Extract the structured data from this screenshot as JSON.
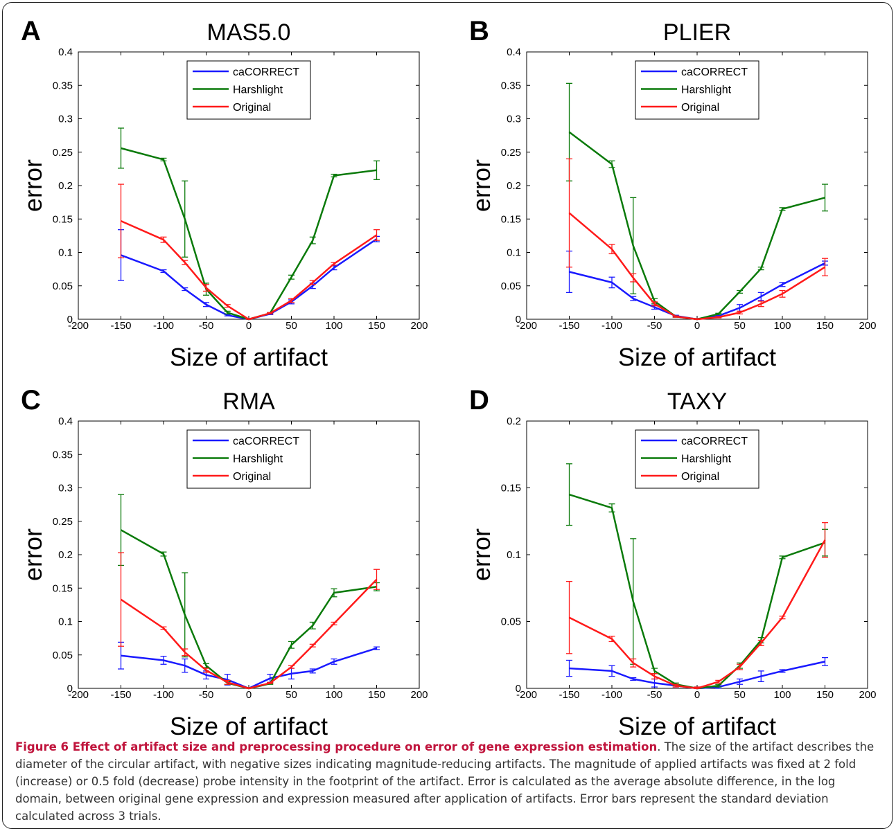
{
  "caption": {
    "lead": "Figure 6 Effect of artifact size and preprocessing procedure on error of gene expression estimation",
    "body": ". The size of the artifact describes the diameter of the circular artifact, with negative sizes indicating magnitude-reducing artifacts. The magnitude of applied artifacts was fixed at 2 fold (increase) or 0.5 fold (decrease) probe intensity in the footprint of the artifact. Error is calculated as the average absolute difference, in the log domain, between original gene expression and expression measured after application of artifacts. Error bars represent the standard deviation calculated across 3 trials."
  },
  "colors": {
    "caCORRECT": "#1a1aff",
    "Harshlight": "#0a7a0a",
    "Original": "#ff1a1a"
  },
  "chart_data": [
    {
      "panel_letter": "A",
      "type": "line",
      "title": "MAS5.0",
      "xlabel": "Size of artifact",
      "ylabel": "error",
      "xlim": [
        -200,
        200
      ],
      "ylim": [
        0,
        0.4
      ],
      "xticks": [
        "-200",
        "-150",
        "-100",
        "-50",
        "0",
        "50",
        "100",
        "150",
        "200"
      ],
      "yticks": [
        "0",
        "0.05",
        "0.1",
        "0.15",
        "0.2",
        "0.25",
        "0.3",
        "0.35",
        "0.4"
      ],
      "legend_position": "top-center",
      "x": [
        -150,
        -100,
        -75,
        -50,
        -25,
        0,
        25,
        50,
        75,
        100,
        150
      ],
      "series": [
        {
          "name": "caCORRECT",
          "values": [
            0.096,
            0.072,
            0.045,
            0.022,
            0.006,
            0,
            0.008,
            0.026,
            0.05,
            0.077,
            0.12
          ],
          "err": [
            0.038,
            0.002,
            0.002,
            0.003,
            0.001,
            0.001,
            0.001,
            0.003,
            0.004,
            0.003,
            0.004
          ]
        },
        {
          "name": "Harshlight",
          "values": [
            0.256,
            0.239,
            0.15,
            0.045,
            0.01,
            0,
            0.009,
            0.063,
            0.118,
            0.215,
            0.223
          ],
          "err": [
            0.03,
            0.002,
            0.057,
            0.009,
            0.002,
            0.001,
            0.001,
            0.003,
            0.005,
            0.002,
            0.014
          ]
        },
        {
          "name": "Original",
          "values": [
            0.147,
            0.119,
            0.085,
            0.047,
            0.02,
            0,
            0.009,
            0.028,
            0.055,
            0.083,
            0.126
          ],
          "err": [
            0.055,
            0.004,
            0.003,
            0.005,
            0.002,
            0.001,
            0.001,
            0.003,
            0.003,
            0.002,
            0.008
          ]
        }
      ]
    },
    {
      "panel_letter": "B",
      "type": "line",
      "title": "PLIER",
      "xlabel": "Size of artifact",
      "ylabel": "error",
      "xlim": [
        -200,
        200
      ],
      "ylim": [
        0,
        0.4
      ],
      "xticks": [
        "-200",
        "-150",
        "-100",
        "-50",
        "0",
        "50",
        "100",
        "150",
        "200"
      ],
      "yticks": [
        "0",
        "0.05",
        "0.1",
        "0.15",
        "0.2",
        "0.25",
        "0.3",
        "0.35",
        "0.4"
      ],
      "legend_position": "top-center",
      "x": [
        -150,
        -100,
        -75,
        -50,
        -25,
        0,
        25,
        50,
        75,
        100,
        150
      ],
      "series": [
        {
          "name": "caCORRECT",
          "values": [
            0.071,
            0.055,
            0.031,
            0.018,
            0.005,
            0,
            0.005,
            0.017,
            0.034,
            0.052,
            0.084
          ],
          "err": [
            0.031,
            0.008,
            0.003,
            0.003,
            0.001,
            0.001,
            0.001,
            0.005,
            0.006,
            0.003,
            0.003
          ]
        },
        {
          "name": "Harshlight",
          "values": [
            0.28,
            0.232,
            0.11,
            0.027,
            0.004,
            0,
            0.008,
            0.041,
            0.076,
            0.165,
            0.182
          ],
          "err": [
            0.073,
            0.005,
            0.072,
            0.004,
            0.001,
            0.001,
            0.001,
            0.002,
            0.002,
            0.002,
            0.02
          ]
        },
        {
          "name": "Original",
          "values": [
            0.159,
            0.105,
            0.062,
            0.023,
            0.004,
            0,
            0.003,
            0.01,
            0.023,
            0.038,
            0.078
          ],
          "err": [
            0.081,
            0.007,
            0.006,
            0.003,
            0.001,
            0.001,
            0.001,
            0.002,
            0.004,
            0.005,
            0.013
          ]
        }
      ]
    },
    {
      "panel_letter": "C",
      "type": "line",
      "title": "RMA",
      "xlabel": "Size of artifact",
      "ylabel": "error",
      "xlim": [
        -200,
        200
      ],
      "ylim": [
        0,
        0.4
      ],
      "xticks": [
        "-200",
        "-150",
        "-100",
        "-50",
        "0",
        "50",
        "100",
        "150",
        "200"
      ],
      "yticks": [
        "0",
        "0.05",
        "0.1",
        "0.15",
        "0.2",
        "0.25",
        "0.3",
        "0.35",
        "0.4"
      ],
      "legend_position": "top-center",
      "x": [
        -150,
        -100,
        -75,
        -50,
        -25,
        0,
        25,
        50,
        75,
        100,
        150
      ],
      "series": [
        {
          "name": "caCORRECT",
          "values": [
            0.049,
            0.042,
            0.034,
            0.02,
            0.013,
            0,
            0.015,
            0.022,
            0.026,
            0.04,
            0.06
          ],
          "err": [
            0.02,
            0.006,
            0.01,
            0.006,
            0.008,
            0.001,
            0.006,
            0.008,
            0.003,
            0.004,
            0.002
          ]
        },
        {
          "name": "Harshlight",
          "values": [
            0.237,
            0.201,
            0.11,
            0.034,
            0.008,
            0,
            0.007,
            0.065,
            0.094,
            0.143,
            0.152
          ],
          "err": [
            0.053,
            0.003,
            0.063,
            0.003,
            0.002,
            0.001,
            0.001,
            0.005,
            0.005,
            0.006,
            0.006
          ]
        },
        {
          "name": "Original",
          "values": [
            0.133,
            0.09,
            0.054,
            0.027,
            0.009,
            0,
            0.008,
            0.032,
            0.064,
            0.097,
            0.163
          ],
          "err": [
            0.07,
            0.002,
            0.005,
            0.003,
            0.003,
            0.001,
            0.001,
            0.002,
            0.002,
            0.002,
            0.015
          ]
        }
      ]
    },
    {
      "panel_letter": "D",
      "type": "line",
      "title": "TAXY",
      "xlabel": "Size of artifact",
      "ylabel": "error",
      "xlim": [
        -200,
        200
      ],
      "ylim": [
        0,
        0.2
      ],
      "xticks": [
        "-200",
        "-150",
        "-100",
        "-50",
        "0",
        "50",
        "100",
        "150",
        "200"
      ],
      "yticks": [
        "0",
        "0.05",
        "0.1",
        "0.15",
        "0.2"
      ],
      "legend_position": "top-center",
      "x": [
        -150,
        -100,
        -75,
        -50,
        -25,
        0,
        25,
        50,
        75,
        100,
        150
      ],
      "series": [
        {
          "name": "caCORRECT",
          "values": [
            0.015,
            0.013,
            0.007,
            0.004,
            0.002,
            0,
            0.001,
            0.005,
            0.009,
            0.013,
            0.02
          ],
          "err": [
            0.006,
            0.004,
            0.001,
            0.003,
            0.001,
            0.001,
            0.001,
            0.002,
            0.004,
            0.001,
            0.003
          ]
        },
        {
          "name": "Harshlight",
          "values": [
            0.145,
            0.135,
            0.065,
            0.013,
            0.003,
            0,
            0.002,
            0.017,
            0.036,
            0.098,
            0.109
          ],
          "err": [
            0.023,
            0.003,
            0.047,
            0.002,
            0.001,
            0.001,
            0.001,
            0.002,
            0.002,
            0.001,
            0.01
          ]
        },
        {
          "name": "Original",
          "values": [
            0.053,
            0.037,
            0.019,
            0.009,
            0.002,
            0,
            0.005,
            0.016,
            0.034,
            0.053,
            0.111
          ],
          "err": [
            0.027,
            0.002,
            0.003,
            0.002,
            0.001,
            0.001,
            0.001,
            0.002,
            0.002,
            0.001,
            0.013
          ]
        }
      ]
    }
  ]
}
